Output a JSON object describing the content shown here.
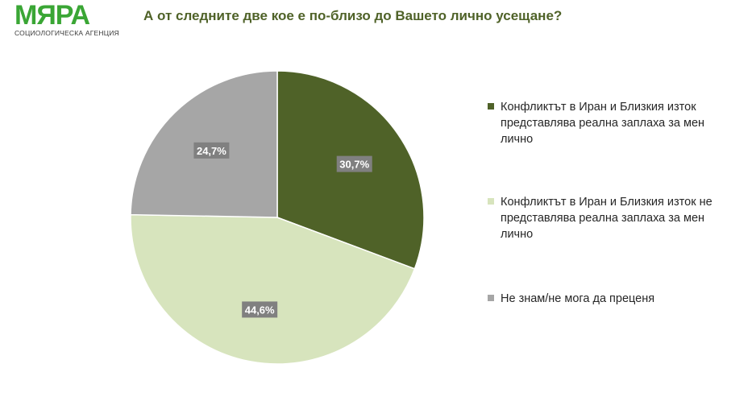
{
  "logo": {
    "name": "МЯРА",
    "subtitle": "СОЦИОЛОГИЧЕСКА АГЕНЦИЯ"
  },
  "chart_data": {
    "type": "pie",
    "title": "А от следните две кое е по-близо до Вашето лично усещане?",
    "slices": [
      {
        "label": "Конфликтът в Иран и Близкия изток представлява реална заплаха за мен лично",
        "value": 30.7,
        "display": "30,7%",
        "color": "#4f6228"
      },
      {
        "label": "Конфликтът в Иран и Близкия изток не представлява реална заплаха за мен лично",
        "value": 44.6,
        "display": "44,6%",
        "color": "#d7e4bd"
      },
      {
        "label": "Не знам/не мога да преценя",
        "value": 24.7,
        "display": "24,7%",
        "color": "#a6a6a6"
      }
    ],
    "legend_position": "right",
    "start": "12 o'clock, clockwise"
  }
}
